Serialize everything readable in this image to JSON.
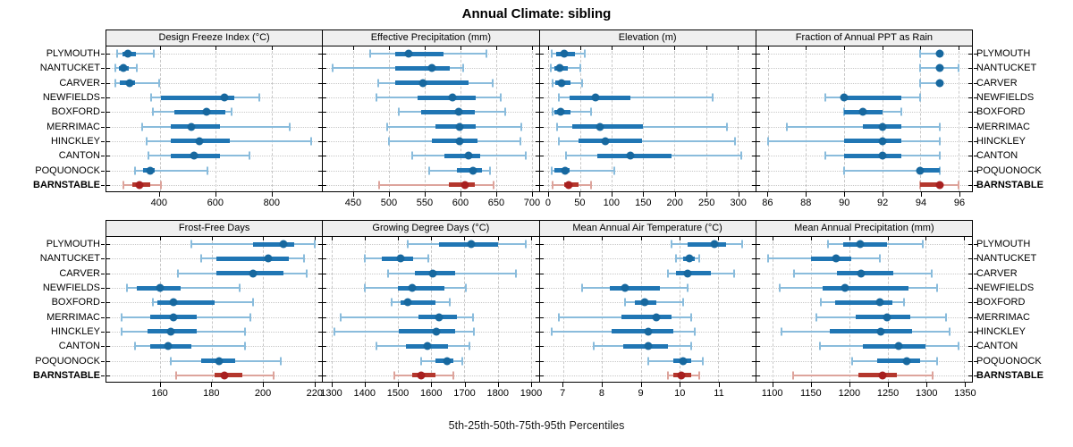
{
  "title": "Annual Climate: sibling",
  "caption": "5th-25th-50th-75th-95th Percentiles",
  "percentile_labels": [
    "5th",
    "25th",
    "50th",
    "75th",
    "95th"
  ],
  "towns": [
    "PLYMOUTH",
    "NANTUCKET",
    "CARVER",
    "NEWFIELDS",
    "BOXFORD",
    "MERRIMAC",
    "HINCKLEY",
    "CANTON",
    "POQUONOCK",
    "BARNSTABLE"
  ],
  "highlight_town": "BARNSTABLE",
  "colors": {
    "series_bar": "#2076b4",
    "series_light": "#8abcdc",
    "series_dot": "#17689f",
    "highlight_bar": "#b4372d",
    "highlight_light": "#dda49c",
    "highlight_dot": "#a81f1f",
    "strip_bg": "#efefef",
    "grid": "#c8c8c8",
    "border": "#000000"
  },
  "chart_data": {
    "type": "dotplot-percentile-ranges",
    "note": "Each row shows 5th-25th-50th-75th-95th percentiles; dot = median, thick bar = 25th-75th, thin whisker with caps = 5th-95th",
    "rows": [
      "PLYMOUTH",
      "NANTUCKET",
      "CARVER",
      "NEWFIELDS",
      "BOXFORD",
      "MERRIMAC",
      "HINCKLEY",
      "CANTON",
      "POQUONOCK",
      "BARNSTABLE"
    ],
    "panels": [
      {
        "title": "Design Freeze Index (°C)",
        "grid_row": 0,
        "xmin": 210,
        "xmax": 980,
        "ticks": [
          400,
          600,
          800
        ],
        "values": {
          "PLYMOUTH": [
            248,
            266,
            288,
            314,
            378
          ],
          "NANTUCKET": [
            243,
            254,
            272,
            291,
            318
          ],
          "CARVER": [
            243,
            257,
            294,
            312,
            399
          ],
          "NEWFIELDS": [
            369,
            405,
            630,
            668,
            756
          ],
          "BOXFORD": [
            377,
            451,
            568,
            635,
            657
          ],
          "MERRIMAC": [
            338,
            440,
            514,
            614,
            864
          ],
          "HINCKLEY": [
            354,
            440,
            542,
            652,
            940
          ],
          "CANTON": [
            361,
            440,
            523,
            614,
            722
          ],
          "POQUONOCK": [
            313,
            340,
            365,
            383,
            571
          ],
          "BARNSTABLE": [
            270,
            302,
            329,
            367,
            404
          ]
        }
      },
      {
        "title": "Effective Precipitation (mm)",
        "grid_row": 0,
        "xmin": 407,
        "xmax": 710,
        "ticks": [
          450,
          500,
          550,
          600,
          650,
          700
        ],
        "values": {
          "PLYMOUTH": [
            473,
            509,
            527,
            576,
            637
          ],
          "NANTUCKET": [
            421,
            508,
            560,
            585,
            604
          ],
          "CARVER": [
            484,
            509,
            547,
            611,
            645
          ],
          "NEWFIELDS": [
            482,
            540,
            589,
            622,
            657
          ],
          "BOXFORD": [
            513,
            545,
            598,
            620,
            663
          ],
          "MERRIMAC": [
            497,
            565,
            599,
            622,
            686
          ],
          "HINCKLEY": [
            500,
            560,
            599,
            624,
            684
          ],
          "CANTON": [
            532,
            578,
            611,
            628,
            692
          ],
          "POQUONOCK": [
            556,
            595,
            618,
            630,
            642
          ],
          "BARNSTABLE": [
            486,
            584,
            606,
            620,
            647
          ]
        }
      },
      {
        "title": "Elevation (m)",
        "grid_row": 0,
        "xmin": -14,
        "xmax": 328,
        "ticks": [
          0,
          50,
          100,
          150,
          200,
          250,
          300
        ],
        "values": {
          "PLYMOUTH": [
            5,
            12,
            25,
            42,
            58
          ],
          "NANTUCKET": [
            4,
            9,
            18,
            30,
            50
          ],
          "CARVER": [
            6,
            11,
            21,
            35,
            54
          ],
          "NEWFIELDS": [
            17,
            33,
            74,
            130,
            261
          ],
          "BOXFORD": [
            6,
            10,
            19,
            35,
            67
          ],
          "MERRIMAC": [
            13,
            38,
            82,
            150,
            283
          ],
          "HINCKLEY": [
            17,
            47,
            90,
            149,
            296
          ],
          "CANTON": [
            28,
            77,
            130,
            195,
            306
          ],
          "POQUONOCK": [
            5,
            10,
            26,
            33,
            105
          ],
          "BARNSTABLE": [
            7,
            25,
            32,
            48,
            68
          ]
        }
      },
      {
        "title": "Fraction of Annual PPT as Rain",
        "grid_row": 0,
        "xmin": 85.4,
        "xmax": 96.7,
        "ticks": [
          86,
          88,
          90,
          92,
          94,
          96
        ],
        "values": {
          "PLYMOUTH": [
            94,
            95,
            95,
            95,
            95
          ],
          "NANTUCKET": [
            94,
            95,
            95,
            95,
            96
          ],
          "CARVER": [
            94,
            95,
            95,
            95,
            95
          ],
          "NEWFIELDS": [
            89,
            90,
            90,
            93,
            94
          ],
          "BOXFORD": [
            90,
            90,
            91,
            92,
            93
          ],
          "MERRIMAC": [
            87,
            91,
            92,
            93,
            95
          ],
          "HINCKLEY": [
            86,
            90,
            92,
            93,
            95
          ],
          "CANTON": [
            89,
            90,
            92,
            93,
            95
          ],
          "POQUONOCK": [
            90,
            94,
            94,
            95,
            95
          ],
          "BARNSTABLE": [
            94,
            94,
            95,
            95,
            96
          ]
        }
      },
      {
        "title": "Frost-Free Days",
        "grid_row": 1,
        "xmin": 139,
        "xmax": 223,
        "ticks": [
          160,
          180,
          200,
          220
        ],
        "values": {
          "PLYMOUTH": [
            172,
            196,
            208,
            212,
            220
          ],
          "NANTUCKET": [
            176,
            182,
            202,
            210,
            216
          ],
          "CARVER": [
            167,
            182,
            196,
            208,
            217
          ],
          "NEWFIELDS": [
            147,
            151,
            160,
            168,
            191
          ],
          "BOXFORD": [
            157,
            159,
            165,
            181,
            196
          ],
          "MERRIMAC": [
            145,
            156,
            165,
            174,
            195
          ],
          "HINCKLEY": [
            145,
            155,
            164,
            174,
            193
          ],
          "CANTON": [
            150,
            156,
            163,
            172,
            193
          ],
          "POQUONOCK": [
            164,
            176,
            183,
            189,
            207
          ],
          "BARNSTABLE": [
            166,
            181,
            185,
            192,
            204
          ]
        }
      },
      {
        "title": "Growing Degree Days (°C)",
        "grid_row": 1,
        "xmin": 1273,
        "xmax": 1924,
        "ticks": [
          1300,
          1400,
          1500,
          1600,
          1700,
          1800,
          1900
        ],
        "values": {
          "PLYMOUTH": [
            1528,
            1622,
            1720,
            1800,
            1884
          ],
          "NANTUCKET": [
            1400,
            1450,
            1506,
            1546,
            1591
          ],
          "CARVER": [
            1468,
            1551,
            1603,
            1671,
            1855
          ],
          "NEWFIELDS": [
            1400,
            1499,
            1543,
            1640,
            1705
          ],
          "BOXFORD": [
            1480,
            1506,
            1528,
            1613,
            1656
          ],
          "MERRIMAC": [
            1325,
            1560,
            1622,
            1676,
            1725
          ],
          "HINCKLEY": [
            1307,
            1501,
            1615,
            1671,
            1728
          ],
          "CANTON": [
            1434,
            1524,
            1588,
            1649,
            1716
          ],
          "POQUONOCK": [
            1569,
            1613,
            1647,
            1665,
            1692
          ],
          "BARNSTABLE": [
            1488,
            1542,
            1570,
            1612,
            1667
          ]
        }
      },
      {
        "title": "Mean Annual Air Temperature (°C)",
        "grid_row": 1,
        "xmin": 6.4,
        "xmax": 11.95,
        "ticks": [
          7,
          8,
          9,
          10,
          11
        ],
        "values": {
          "PLYMOUTH": [
            9.8,
            10.2,
            10.9,
            11.2,
            11.6
          ],
          "NANTUCKET": [
            9.9,
            10.1,
            10.25,
            10.4,
            10.5
          ],
          "CARVER": [
            9.7,
            9.9,
            10.2,
            10.8,
            11.4
          ],
          "NEWFIELDS": [
            7.5,
            8.2,
            8.6,
            9.5,
            10.2
          ],
          "BOXFORD": [
            8.6,
            8.85,
            9.1,
            9.4,
            10.1
          ],
          "MERRIMAC": [
            6.9,
            8.5,
            9.4,
            9.8,
            10.3
          ],
          "HINCKLEY": [
            6.7,
            8.25,
            9.2,
            9.85,
            10.4
          ],
          "CANTON": [
            7.8,
            8.55,
            9.2,
            9.7,
            10.3
          ],
          "POQUONOCK": [
            9.2,
            9.85,
            10.1,
            10.3,
            10.6
          ],
          "BARNSTABLE": [
            9.7,
            9.85,
            10.05,
            10.3,
            10.5
          ]
        }
      },
      {
        "title": "Mean Annual Precipitation (mm)",
        "grid_row": 1,
        "xmin": 1079,
        "xmax": 1360,
        "ticks": [
          1100,
          1150,
          1200,
          1250,
          1300,
          1350
        ],
        "values": {
          "PLYMOUTH": [
            1173,
            1192,
            1214,
            1249,
            1296
          ],
          "NANTUCKET": [
            1095,
            1150,
            1183,
            1203,
            1240
          ],
          "CARVER": [
            1128,
            1184,
            1216,
            1258,
            1308
          ],
          "NEWFIELDS": [
            1110,
            1165,
            1195,
            1277,
            1314
          ],
          "BOXFORD": [
            1163,
            1182,
            1240,
            1256,
            1271
          ],
          "MERRIMAC": [
            1157,
            1208,
            1249,
            1280,
            1326
          ],
          "HINCKLEY": [
            1112,
            1175,
            1241,
            1282,
            1331
          ],
          "CANTON": [
            1162,
            1218,
            1265,
            1300,
            1343
          ],
          "POQUONOCK": [
            1204,
            1236,
            1275,
            1293,
            1314
          ],
          "BARNSTABLE": [
            1127,
            1212,
            1243,
            1262,
            1309
          ]
        }
      }
    ]
  }
}
